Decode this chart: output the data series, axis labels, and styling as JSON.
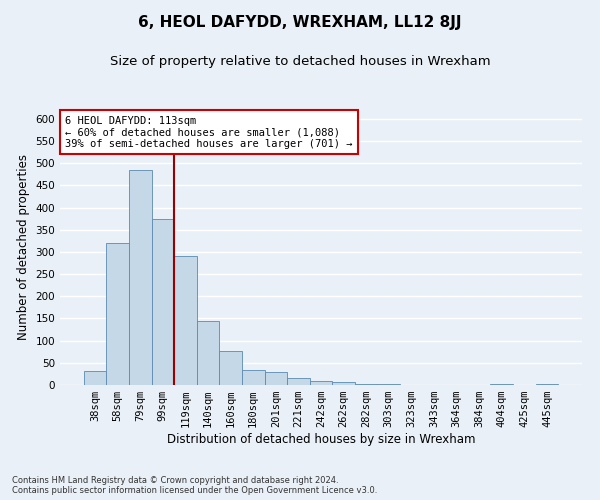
{
  "title": "6, HEOL DAFYDD, WREXHAM, LL12 8JJ",
  "subtitle": "Size of property relative to detached houses in Wrexham",
  "xlabel": "Distribution of detached houses by size in Wrexham",
  "ylabel": "Number of detached properties",
  "footnote": "Contains HM Land Registry data © Crown copyright and database right 2024.\nContains public sector information licensed under the Open Government Licence v3.0.",
  "categories": [
    "38sqm",
    "58sqm",
    "79sqm",
    "99sqm",
    "119sqm",
    "140sqm",
    "160sqm",
    "180sqm",
    "201sqm",
    "221sqm",
    "242sqm",
    "262sqm",
    "282sqm",
    "303sqm",
    "323sqm",
    "343sqm",
    "364sqm",
    "384sqm",
    "404sqm",
    "425sqm",
    "445sqm"
  ],
  "values": [
    31,
    320,
    484,
    375,
    290,
    145,
    77,
    33,
    30,
    15,
    8,
    6,
    3,
    2,
    1,
    1,
    0,
    0,
    3,
    0,
    3
  ],
  "bar_color": "#c5d8e8",
  "bar_edge_color": "#5a8ab0",
  "vline_x": 3.5,
  "vline_color": "#9b0000",
  "annotation_text": "6 HEOL DAFYDD: 113sqm\n← 60% of detached houses are smaller (1,088)\n39% of semi-detached houses are larger (701) →",
  "annotation_box_color": "#ffffff",
  "annotation_box_edge_color": "#cc0000",
  "ylim": [
    0,
    620
  ],
  "yticks": [
    0,
    50,
    100,
    150,
    200,
    250,
    300,
    350,
    400,
    450,
    500,
    550,
    600
  ],
  "bg_color": "#eaf0f8",
  "plot_bg_color": "#eaf0f8",
  "grid_color": "#ffffff",
  "title_fontsize": 11,
  "subtitle_fontsize": 9.5,
  "label_fontsize": 8.5,
  "tick_fontsize": 7.5,
  "annot_fontsize": 7.5,
  "footnote_fontsize": 6
}
